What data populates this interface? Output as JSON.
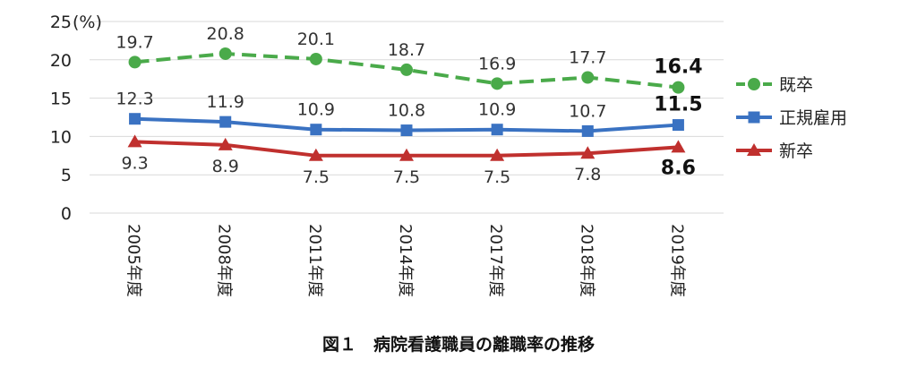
{
  "chart_data": {
    "type": "line",
    "title": "",
    "caption": "図１　病院看護職員の離職率の推移",
    "y_unit": "(%)",
    "ylim": [
      0,
      25
    ],
    "yticks": [
      "0",
      "5",
      "10",
      "15",
      "20",
      "25"
    ],
    "categories": [
      "2005年度",
      "2008年度",
      "2011年度",
      "2014年度",
      "2017年度",
      "2018年度",
      "2019年度"
    ],
    "grid": "horizontal",
    "legend": "right",
    "series": [
      {
        "name": "既卒",
        "color": "#4aaa4a",
        "dash": "dashed",
        "marker": "circle",
        "label_position": "above",
        "values": [
          19.7,
          20.8,
          20.1,
          18.7,
          16.9,
          17.7,
          16.4
        ],
        "labels": [
          "19.7",
          "20.8",
          "20.1",
          "18.7",
          "16.9",
          "17.7",
          "16.4"
        ]
      },
      {
        "name": "正規雇用",
        "color": "#3a72c2",
        "dash": "solid",
        "marker": "square",
        "label_position": "above",
        "values": [
          12.3,
          11.9,
          10.9,
          10.8,
          10.9,
          10.7,
          11.5
        ],
        "labels": [
          "12.3",
          "11.9",
          "10.9",
          "10.8",
          "10.9",
          "10.7",
          "11.5"
        ]
      },
      {
        "name": "新卒",
        "color": "#c0302e",
        "dash": "solid",
        "marker": "triangle",
        "label_position": "below",
        "values": [
          9.3,
          8.9,
          7.5,
          7.5,
          7.5,
          7.8,
          8.6
        ],
        "labels": [
          "9.3",
          "8.9",
          "7.5",
          "7.5",
          "7.5",
          "7.8",
          "8.6"
        ]
      }
    ]
  }
}
